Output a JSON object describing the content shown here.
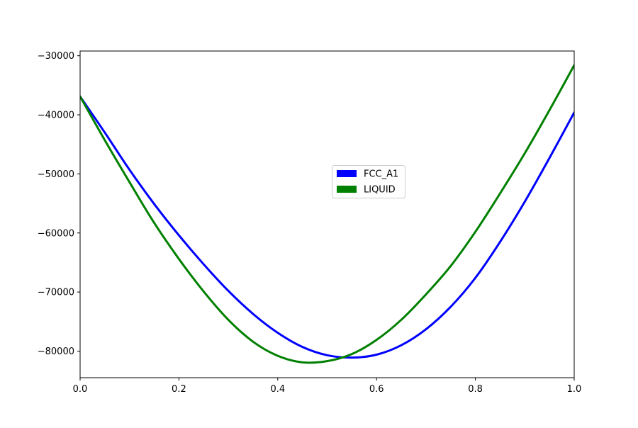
{
  "chart_data": {
    "type": "line",
    "title": "",
    "xlabel": "",
    "ylabel": "",
    "xlim": [
      0.0,
      1.0
    ],
    "ylim": [
      -84500,
      -29200
    ],
    "grid": false,
    "legend_position": "center-right",
    "x_ticks": [
      0.0,
      0.2,
      0.4,
      0.6,
      0.8,
      1.0
    ],
    "x_tick_labels": [
      "0.0",
      "0.2",
      "0.4",
      "0.6",
      "0.8",
      "1.0"
    ],
    "y_ticks": [
      -80000,
      -70000,
      -60000,
      -50000,
      -40000,
      -30000
    ],
    "y_tick_labels": [
      "−80000",
      "−70000",
      "−60000",
      "−50000",
      "−40000",
      "−30000"
    ],
    "series": [
      {
        "name": "FCC_A1",
        "color": "#0000ff",
        "x": [
          0.0,
          0.05,
          0.1,
          0.15,
          0.2,
          0.25,
          0.3,
          0.35,
          0.4,
          0.45,
          0.5,
          0.55,
          0.6,
          0.65,
          0.7,
          0.75,
          0.8,
          0.85,
          0.9,
          0.95,
          1.0
        ],
        "y": [
          -36900,
          -43000,
          -49300,
          -55100,
          -60400,
          -65300,
          -69800,
          -73700,
          -76900,
          -79300,
          -80700,
          -81100,
          -80600,
          -79000,
          -76300,
          -72500,
          -67600,
          -61500,
          -54700,
          -47300,
          -39600
        ]
      },
      {
        "name": "LIQUID",
        "color": "#008000",
        "x": [
          0.0,
          0.05,
          0.1,
          0.15,
          0.2,
          0.25,
          0.3,
          0.35,
          0.4,
          0.45,
          0.5,
          0.55,
          0.6,
          0.65,
          0.7,
          0.75,
          0.8,
          0.85,
          0.9,
          0.95,
          1.0
        ],
        "y": [
          -36900,
          -44300,
          -51400,
          -58300,
          -64400,
          -69900,
          -74700,
          -78400,
          -80800,
          -81900,
          -81700,
          -80500,
          -78100,
          -74700,
          -70400,
          -65600,
          -59800,
          -53300,
          -46500,
          -39200,
          -31600
        ]
      }
    ]
  }
}
